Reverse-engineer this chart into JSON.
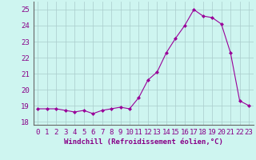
{
  "x": [
    0,
    1,
    2,
    3,
    4,
    5,
    6,
    7,
    8,
    9,
    10,
    11,
    12,
    13,
    14,
    15,
    16,
    17,
    18,
    19,
    20,
    21,
    22,
    23
  ],
  "y": [
    18.8,
    18.8,
    18.8,
    18.7,
    18.6,
    18.7,
    18.5,
    18.7,
    18.8,
    18.9,
    18.8,
    19.5,
    20.6,
    21.1,
    22.3,
    23.2,
    24.0,
    25.0,
    24.6,
    24.5,
    24.1,
    22.3,
    19.3,
    19.0
  ],
  "line_color": "#990099",
  "marker": "D",
  "marker_size": 2.0,
  "bg_color": "#cef5f0",
  "grid_color": "#aacccc",
  "xlabel": "Windchill (Refroidissement éolien,°C)",
  "ylim": [
    17.8,
    25.5
  ],
  "xlim": [
    -0.5,
    23.5
  ],
  "yticks": [
    18,
    19,
    20,
    21,
    22,
    23,
    24,
    25
  ],
  "xticks": [
    0,
    1,
    2,
    3,
    4,
    5,
    6,
    7,
    8,
    9,
    10,
    11,
    12,
    13,
    14,
    15,
    16,
    17,
    18,
    19,
    20,
    21,
    22,
    23
  ],
  "title_color": "#880088",
  "axis_color": "#666666",
  "label_fontsize": 6.5,
  "tick_fontsize": 6.5
}
